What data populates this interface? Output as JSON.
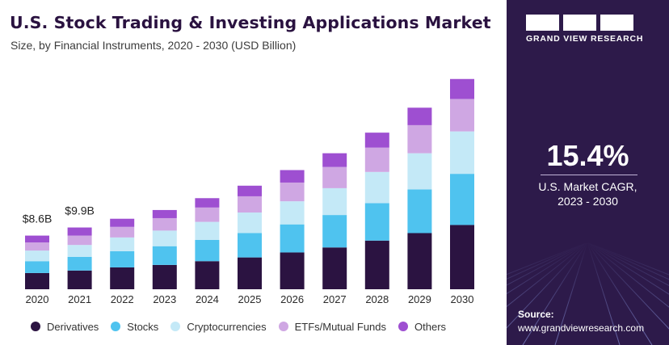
{
  "header": {
    "title": "U.S. Stock Trading & Investing Applications Market",
    "subtitle": "Size, by Financial Instruments, 2020 - 2030 (USD Billion)"
  },
  "chart_data": {
    "type": "bar",
    "stacked": true,
    "categories": [
      "2020",
      "2021",
      "2022",
      "2023",
      "2024",
      "2025",
      "2026",
      "2027",
      "2028",
      "2029",
      "2030"
    ],
    "series": [
      {
        "name": "Derivatives",
        "color": "#2b1341",
        "values": [
          2.6,
          3.0,
          3.5,
          3.9,
          4.5,
          5.1,
          5.9,
          6.7,
          7.8,
          9.0,
          10.3
        ]
      },
      {
        "name": "Stocks",
        "color": "#4fc3ef",
        "values": [
          1.9,
          2.2,
          2.6,
          3.0,
          3.4,
          3.9,
          4.5,
          5.2,
          6.0,
          7.0,
          8.2
        ]
      },
      {
        "name": "Cryptocurrencies",
        "color": "#c4e9f7",
        "values": [
          1.7,
          1.9,
          2.2,
          2.5,
          2.9,
          3.3,
          3.7,
          4.3,
          5.0,
          5.8,
          6.8
        ]
      },
      {
        "name": "ETFs/Mutual Funds",
        "color": "#cfa7e3",
        "values": [
          1.3,
          1.5,
          1.7,
          2.0,
          2.3,
          2.6,
          3.0,
          3.4,
          3.9,
          4.5,
          5.2
        ]
      },
      {
        "name": "Others",
        "color": "#9e4fd1",
        "values": [
          1.1,
          1.3,
          1.3,
          1.3,
          1.5,
          1.7,
          2.0,
          2.2,
          2.4,
          2.8,
          3.2
        ]
      }
    ],
    "data_labels": [
      {
        "category": "2020",
        "text": "$8.6B"
      },
      {
        "category": "2021",
        "text": "$9.9B"
      }
    ],
    "ylim": [
      0,
      36
    ],
    "grid": false,
    "legend": "bottom"
  },
  "panel": {
    "brand_name": "GRAND VIEW RESEARCH",
    "cagr_value": "15.4%",
    "cagr_label_line1": "U.S. Market CAGR,",
    "cagr_label_line2": "2023 - 2030",
    "source_label": "Source:",
    "source_url": "www.grandviewresearch.com",
    "background_color": "#2d1a4a"
  }
}
